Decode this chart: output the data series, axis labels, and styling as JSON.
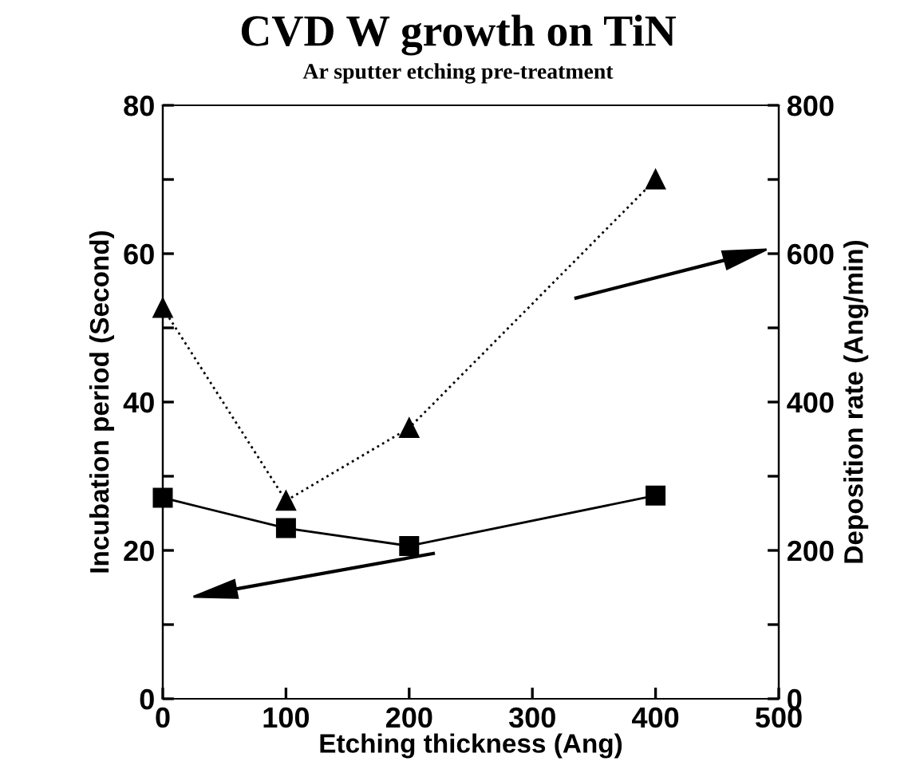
{
  "chart_data": {
    "type": "line",
    "title": "CVD W growth on TiN",
    "subtitle": "Ar sputter etching pre-treatment",
    "xlabel": "Etching thickness (Ang)",
    "ylabel": "Incubation period (Second)",
    "y2label": "Deposition rate (Ang/min)",
    "x": [
      0,
      100,
      200,
      400
    ],
    "series": [
      {
        "color": "#000000",
        "values": [
          27.1,
          23.0,
          20.6,
          27.4
        ],
        "marker": "square",
        "line_style": "solid"
      },
      {
        "color": "#000000",
        "values": [
          527,
          267,
          365,
          700
        ],
        "marker": "triangle",
        "line_style": "dotted",
        "axis": "y2"
      }
    ],
    "xlim": [
      0,
      500
    ],
    "xticks": [
      0,
      100,
      200,
      300,
      400,
      500
    ],
    "ylim": [
      0,
      80
    ],
    "yticks": [
      0,
      {
        "value": 10,
        "label": null
      },
      20,
      {
        "value": 30,
        "label": null
      },
      40,
      {
        "value": 50,
        "label": null
      },
      60,
      {
        "value": 70,
        "label": null
      },
      80
    ],
    "y2lim": [
      0,
      800
    ],
    "y2ticks": [
      0,
      {
        "value": 100,
        "label": null
      },
      200,
      {
        "value": 300,
        "label": null
      },
      400,
      {
        "value": 500,
        "label": null
      },
      600,
      {
        "value": 700,
        "label": null
      },
      800
    ],
    "grid": false,
    "legend": false
  }
}
